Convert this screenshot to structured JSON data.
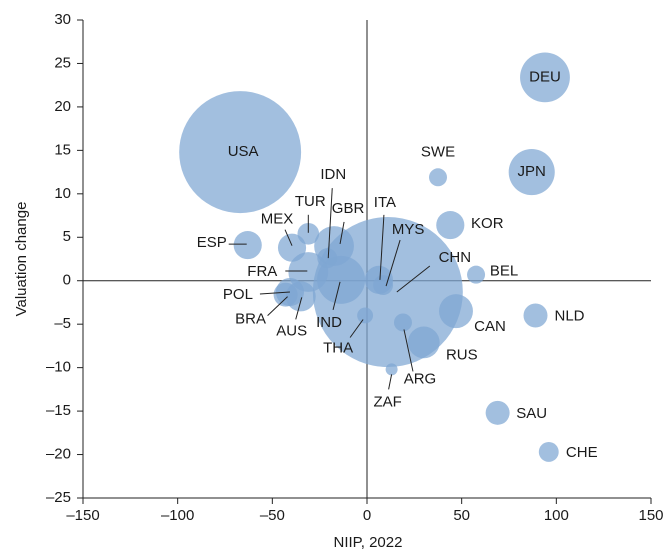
{
  "chart_data": {
    "type": "scatter",
    "xlabel": "NIIP, 2022",
    "ylabel": "Valuation change",
    "xlim": [
      -150,
      150
    ],
    "ylim": [
      -25,
      30
    ],
    "xticks": [
      {
        "value": -150,
        "label": "–150"
      },
      {
        "value": -100,
        "label": "–100"
      },
      {
        "value": -50,
        "label": "–50"
      },
      0,
      50,
      100,
      150
    ],
    "yticks": [
      {
        "value": -25,
        "label": "–25"
      },
      {
        "value": -20,
        "label": "–20"
      },
      {
        "value": -15,
        "label": "–15"
      },
      {
        "value": -10,
        "label": "–10"
      },
      {
        "value": -5,
        "label": "–5"
      },
      0,
      5,
      10,
      15,
      20,
      25,
      30
    ],
    "color": "#7ea6d3",
    "labels": [
      "CHN",
      "USA",
      "DEU",
      "IND",
      "JPN",
      "GBR",
      "FRA",
      "CAN",
      "RUS",
      "AUS",
      "KOR",
      "ITA",
      "MEX",
      "ESP",
      "POL",
      "NLD",
      "SAU",
      "BRA",
      "TUR",
      "CHE",
      "IDN",
      "MYS",
      "SWE",
      "BEL",
      "ARG",
      "THA",
      "ZAF"
    ],
    "x": [
      11,
      -67,
      94,
      -13.7,
      87,
      -17.4,
      -31,
      47,
      30,
      -35,
      44,
      6.3,
      -39.6,
      -63,
      -40.7,
      89,
      69,
      -43,
      -31,
      96,
      -21,
      8.5,
      37.5,
      57.6,
      19,
      -1,
      13
    ],
    "values": [
      -1.3,
      14.8,
      23.4,
      0.1,
      12.5,
      4,
      1,
      -3.5,
      -7.1,
      -1.8,
      6.4,
      0.1,
      3.8,
      4.1,
      -1.3,
      -4,
      -15.2,
      -1.6,
      5.4,
      -19.7,
      2.6,
      -0.5,
      11.9,
      0.7,
      -4.8,
      -4,
      -10.2
    ],
    "sizes": [
      625,
      413,
      69,
      64,
      59,
      44,
      44,
      32,
      28,
      25,
      22,
      22,
      22,
      22,
      22,
      16,
      16,
      16,
      13,
      11,
      11,
      11,
      9,
      9,
      9,
      7,
      4
    ]
  }
}
